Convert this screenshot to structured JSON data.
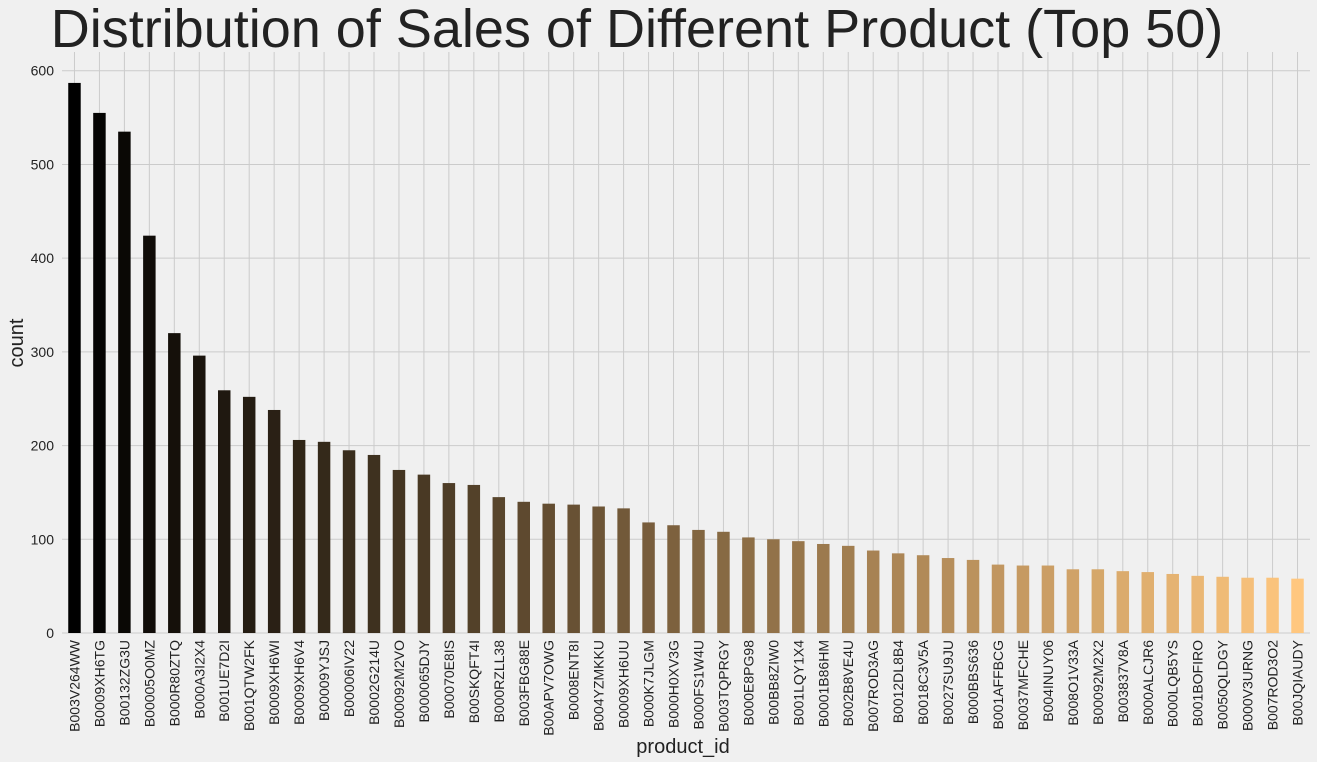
{
  "chart_data": {
    "type": "bar",
    "title": "Distribution of Sales of Different Product (Top 50)",
    "xlabel": "product_id",
    "ylabel": "count",
    "ylim": [
      0,
      620
    ],
    "yticks": [
      0,
      100,
      200,
      300,
      400,
      500,
      600
    ],
    "grid": true,
    "colormap": "copper",
    "colors": {
      "background": "#f0f0f0",
      "grid": "#cbcbcb",
      "text": "#222222",
      "bar_start": "#000000",
      "bar_end": "#ffc77f"
    },
    "categories": [
      "B003V264WW",
      "B0009XH6TG",
      "B00132ZG3U",
      "B00005O0MZ",
      "B000R80ZTQ",
      "B000A3I2X4",
      "B001UE7D2I",
      "B001QTW2FK",
      "B0009XH6WI",
      "B0009XH6V4",
      "B00009YJSJ",
      "B00006IV22",
      "B0002G214U",
      "B00092M2VO",
      "B000065DJY",
      "B00070E8IS",
      "B00SKQFT4I",
      "B000RZLL38",
      "B003FBG88E",
      "B00APV7OWG",
      "B0008ENT8I",
      "B004YZMKKU",
      "B0009XH6UU",
      "B000K7JLGM",
      "B000H0XV3G",
      "B000FS1W4U",
      "B003TQPRGY",
      "B000E8PG98",
      "B00BB8ZIW0",
      "B001LQY1X4",
      "B0001B86HM",
      "B002B8VE4U",
      "B007ROD3AG",
      "B0012DL8B4",
      "B0018C3V5A",
      "B0027SU9JU",
      "B000BBS636",
      "B001AFFBCG",
      "B0037MFCHE",
      "B004INUY06",
      "B008O1V33A",
      "B00092M2X2",
      "B003837V8A",
      "B000ALCJR6",
      "B000LQB5YS",
      "B001BOFIRO",
      "B0050QLDGY",
      "B000V3URNG",
      "B007ROD3O2",
      "B00JQIAUDY"
    ],
    "values": [
      587,
      555,
      535,
      424,
      320,
      296,
      259,
      252,
      238,
      206,
      204,
      195,
      190,
      174,
      169,
      160,
      158,
      145,
      140,
      138,
      137,
      135,
      133,
      118,
      115,
      110,
      108,
      102,
      100,
      98,
      95,
      93,
      88,
      85,
      83,
      80,
      78,
      73,
      72,
      72,
      68,
      68,
      66,
      65,
      63,
      61,
      60,
      59,
      59,
      58
    ]
  }
}
